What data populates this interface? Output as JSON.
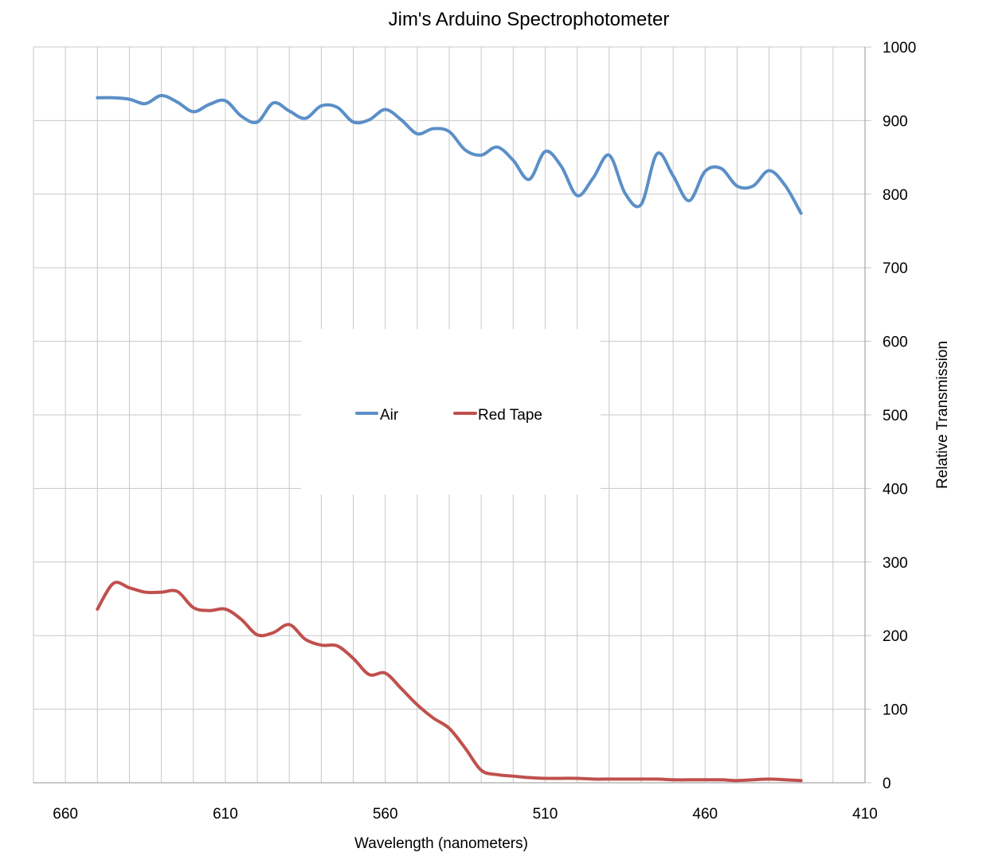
{
  "chart_data": {
    "type": "line",
    "title": "Jim's Arduino Spectrophotometer",
    "xlabel": "Wavelength (nanometers)",
    "ylabel": "Relative Transmission",
    "x_reversed": true,
    "xlim": [
      410,
      670
    ],
    "ylim": [
      0,
      1000
    ],
    "x_ticks": [
      660,
      610,
      560,
      510,
      460,
      410
    ],
    "y_ticks": [
      0,
      100,
      200,
      300,
      400,
      500,
      600,
      700,
      800,
      900,
      1000
    ],
    "grid": true,
    "legend_position": "center",
    "series": [
      {
        "name": "Air",
        "color": "#5b8fc7",
        "x": [
          650,
          645,
          640,
          635,
          630,
          625,
          620,
          615,
          610,
          605,
          600,
          595,
          590,
          585,
          580,
          575,
          570,
          565,
          560,
          555,
          550,
          545,
          540,
          535,
          530,
          525,
          520,
          515,
          510,
          505,
          500,
          495,
          490,
          485,
          480,
          475,
          470,
          465,
          460,
          455,
          450,
          445,
          440,
          435,
          430
        ],
        "values": [
          931,
          931,
          929,
          923,
          934,
          925,
          912,
          922,
          927,
          906,
          898,
          924,
          913,
          903,
          920,
          918,
          898,
          901,
          915,
          901,
          882,
          889,
          885,
          860,
          853,
          864,
          846,
          820,
          858,
          838,
          798,
          822,
          853,
          801,
          786,
          855,
          825,
          791,
          831,
          835,
          811,
          811,
          832,
          812,
          774
        ]
      },
      {
        "name": "Red Tape",
        "color": "#c0504d",
        "x": [
          650,
          645,
          640,
          635,
          630,
          625,
          620,
          615,
          610,
          605,
          600,
          595,
          590,
          585,
          580,
          575,
          570,
          565,
          560,
          555,
          550,
          545,
          540,
          535,
          530,
          525,
          520,
          515,
          510,
          505,
          500,
          495,
          490,
          485,
          480,
          475,
          470,
          465,
          460,
          455,
          450,
          445,
          440,
          435,
          430
        ],
        "values": [
          236,
          271,
          265,
          259,
          259,
          260,
          238,
          234,
          236,
          222,
          201,
          204,
          215,
          195,
          187,
          186,
          169,
          147,
          149,
          128,
          106,
          88,
          74,
          47,
          17,
          11,
          9,
          7,
          6,
          6,
          6,
          5,
          5,
          5,
          5,
          5,
          4,
          4,
          4,
          4,
          3,
          4,
          5,
          4,
          3
        ]
      }
    ]
  }
}
